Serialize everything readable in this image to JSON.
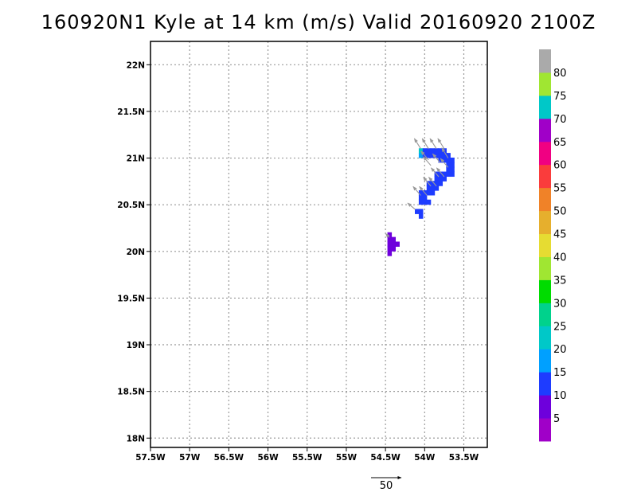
{
  "title": "160920N1 Kyle at 14 km (m/s) Valid 20160920 2100Z",
  "chart_data": {
    "type": "heatmap",
    "title": "160920N1 Kyle at 14 km (m/s) Valid 20160920 2100Z",
    "xlim": [
      -57.5,
      -53.2
    ],
    "ylim": [
      17.9,
      22.25
    ],
    "x_ticks": [
      -57.5,
      -57,
      -56.5,
      -56,
      -55.5,
      -55,
      -54.5,
      -54,
      -53.5
    ],
    "x_tick_labels": [
      "57.5W",
      "57W",
      "56.5W",
      "56W",
      "55.5W",
      "55W",
      "54.5W",
      "54W",
      "53.5W"
    ],
    "y_ticks": [
      18,
      18.5,
      19,
      19.5,
      20,
      20.5,
      21,
      21.5,
      22
    ],
    "y_tick_labels": [
      "18N",
      "18.5N",
      "19N",
      "19.5N",
      "20N",
      "20.5N",
      "21N",
      "21.5N",
      "22N"
    ],
    "grid": true,
    "cell_size_deg": 0.05,
    "cells": [
      {
        "lon": -54.45,
        "lat": 20.18,
        "v": 7
      },
      {
        "lon": -54.45,
        "lat": 20.13,
        "v": 7
      },
      {
        "lon": -54.4,
        "lat": 20.13,
        "v": 7
      },
      {
        "lon": -54.45,
        "lat": 20.08,
        "v": 7
      },
      {
        "lon": -54.4,
        "lat": 20.08,
        "v": 7
      },
      {
        "lon": -54.35,
        "lat": 20.08,
        "v": 7
      },
      {
        "lon": -54.45,
        "lat": 20.03,
        "v": 7
      },
      {
        "lon": -54.4,
        "lat": 20.03,
        "v": 7
      },
      {
        "lon": -54.45,
        "lat": 19.98,
        "v": 7
      },
      {
        "lon": -54.1,
        "lat": 20.43,
        "v": 12
      },
      {
        "lon": -54.05,
        "lat": 20.43,
        "v": 12
      },
      {
        "lon": -54.05,
        "lat": 20.38,
        "v": 12
      },
      {
        "lon": -54.05,
        "lat": 20.58,
        "v": 12
      },
      {
        "lon": -54.0,
        "lat": 20.58,
        "v": 12
      },
      {
        "lon": -54.05,
        "lat": 20.53,
        "v": 12
      },
      {
        "lon": -54.0,
        "lat": 20.53,
        "v": 12
      },
      {
        "lon": -53.95,
        "lat": 20.53,
        "v": 12
      },
      {
        "lon": -54.05,
        "lat": 20.63,
        "v": 12
      },
      {
        "lon": -54.0,
        "lat": 20.63,
        "v": 12
      },
      {
        "lon": -53.95,
        "lat": 20.63,
        "v": 12
      },
      {
        "lon": -53.9,
        "lat": 20.63,
        "v": 12
      },
      {
        "lon": -53.95,
        "lat": 20.68,
        "v": 12
      },
      {
        "lon": -53.9,
        "lat": 20.68,
        "v": 12
      },
      {
        "lon": -53.85,
        "lat": 20.68,
        "v": 12
      },
      {
        "lon": -53.95,
        "lat": 20.73,
        "v": 12
      },
      {
        "lon": -53.9,
        "lat": 20.73,
        "v": 12
      },
      {
        "lon": -53.85,
        "lat": 20.73,
        "v": 12
      },
      {
        "lon": -53.8,
        "lat": 20.73,
        "v": 12
      },
      {
        "lon": -53.85,
        "lat": 20.78,
        "v": 12
      },
      {
        "lon": -53.8,
        "lat": 20.78,
        "v": 12
      },
      {
        "lon": -53.75,
        "lat": 20.78,
        "v": 12
      },
      {
        "lon": -53.85,
        "lat": 20.83,
        "v": 12
      },
      {
        "lon": -53.8,
        "lat": 20.83,
        "v": 12
      },
      {
        "lon": -53.75,
        "lat": 20.83,
        "v": 12
      },
      {
        "lon": -53.7,
        "lat": 20.83,
        "v": 12
      },
      {
        "lon": -53.65,
        "lat": 20.83,
        "v": 12
      },
      {
        "lon": -53.7,
        "lat": 20.88,
        "v": 12
      },
      {
        "lon": -53.65,
        "lat": 20.88,
        "v": 12
      },
      {
        "lon": -53.7,
        "lat": 20.93,
        "v": 12
      },
      {
        "lon": -53.65,
        "lat": 20.93,
        "v": 12
      },
      {
        "lon": -53.8,
        "lat": 20.98,
        "v": 12
      },
      {
        "lon": -53.75,
        "lat": 20.98,
        "v": 12
      },
      {
        "lon": -53.7,
        "lat": 20.98,
        "v": 12
      },
      {
        "lon": -53.65,
        "lat": 20.98,
        "v": 12
      },
      {
        "lon": -54.05,
        "lat": 21.03,
        "v": 17
      },
      {
        "lon": -54.0,
        "lat": 21.03,
        "v": 12
      },
      {
        "lon": -53.95,
        "lat": 21.03,
        "v": 12
      },
      {
        "lon": -53.9,
        "lat": 21.03,
        "v": 12
      },
      {
        "lon": -53.85,
        "lat": 21.03,
        "v": 12
      },
      {
        "lon": -53.8,
        "lat": 21.03,
        "v": 12
      },
      {
        "lon": -53.75,
        "lat": 21.03,
        "v": 12
      },
      {
        "lon": -53.7,
        "lat": 21.03,
        "v": 12
      },
      {
        "lon": -54.05,
        "lat": 21.08,
        "v": 22
      },
      {
        "lon": -54.0,
        "lat": 21.08,
        "v": 12
      },
      {
        "lon": -53.95,
        "lat": 21.08,
        "v": 12
      },
      {
        "lon": -53.9,
        "lat": 21.08,
        "v": 12
      },
      {
        "lon": -53.85,
        "lat": 21.08,
        "v": 12
      },
      {
        "lon": -53.8,
        "lat": 21.08,
        "v": 12
      },
      {
        "lon": -53.75,
        "lat": 21.08,
        "v": 12
      }
    ],
    "wind_vectors": [
      {
        "lon": -54.45,
        "lat": 20.15,
        "u": -3,
        "v": 3
      },
      {
        "lon": -54.12,
        "lat": 20.45,
        "u": -6,
        "v": 5
      },
      {
        "lon": -54.05,
        "lat": 20.6,
        "u": -6,
        "v": 7
      },
      {
        "lon": -53.97,
        "lat": 20.6,
        "u": -6,
        "v": 7
      },
      {
        "lon": -53.92,
        "lat": 20.7,
        "u": -6,
        "v": 7
      },
      {
        "lon": -53.85,
        "lat": 20.7,
        "u": -6,
        "v": 7
      },
      {
        "lon": -53.82,
        "lat": 20.8,
        "u": -6,
        "v": 7
      },
      {
        "lon": -53.75,
        "lat": 20.8,
        "u": -6,
        "v": 7
      },
      {
        "lon": -53.7,
        "lat": 20.9,
        "u": -6,
        "v": 7
      },
      {
        "lon": -53.92,
        "lat": 20.92,
        "u": -6,
        "v": 7
      },
      {
        "lon": -53.8,
        "lat": 20.95,
        "u": -6,
        "v": 7
      },
      {
        "lon": -54.05,
        "lat": 21.1,
        "u": -5,
        "v": 8
      },
      {
        "lon": -53.95,
        "lat": 21.1,
        "u": -5,
        "v": 8
      },
      {
        "lon": -53.85,
        "lat": 21.1,
        "u": -5,
        "v": 8
      },
      {
        "lon": -53.75,
        "lat": 21.1,
        "u": -5,
        "v": 8
      },
      {
        "lon": -53.95,
        "lat": 20.98,
        "u": -6,
        "v": 7
      },
      {
        "lon": -53.7,
        "lat": 21.0,
        "u": -5,
        "v": 8
      }
    ],
    "reference_vector": {
      "magnitude": 50,
      "label": "50"
    },
    "colorbar": {
      "labels": [
        "5",
        "10",
        "15",
        "20",
        "25",
        "30",
        "35",
        "40",
        "45",
        "50",
        "55",
        "60",
        "65",
        "70",
        "75",
        "80"
      ],
      "bins": [
        {
          "max": 5,
          "color": "#a000c8"
        },
        {
          "max": 10,
          "color": "#6e00dc"
        },
        {
          "max": 15,
          "color": "#1e3cff"
        },
        {
          "max": 20,
          "color": "#00a0ff"
        },
        {
          "max": 25,
          "color": "#00c8c8"
        },
        {
          "max": 30,
          "color": "#00d28c"
        },
        {
          "max": 35,
          "color": "#00dc00"
        },
        {
          "max": 40,
          "color": "#a0e632"
        },
        {
          "max": 45,
          "color": "#e6dc32"
        },
        {
          "max": 50,
          "color": "#e6af2d"
        },
        {
          "max": 55,
          "color": "#f08228"
        },
        {
          "max": 60,
          "color": "#fa3c3c"
        },
        {
          "max": 65,
          "color": "#f00082"
        },
        {
          "max": 70,
          "color": "#a000c8"
        },
        {
          "max": 75,
          "color": "#00c8c8"
        },
        {
          "max": 80,
          "color": "#a0e632"
        },
        {
          "max": 85,
          "color": "#aaaaaa"
        }
      ]
    }
  }
}
